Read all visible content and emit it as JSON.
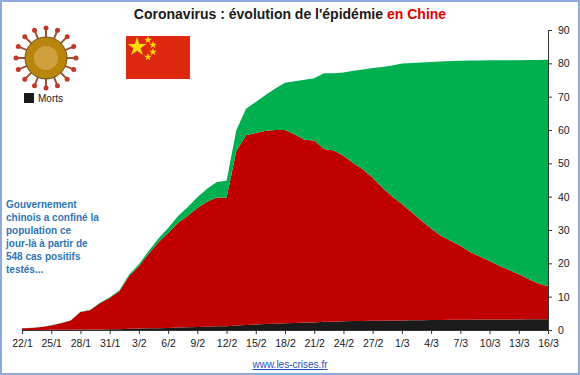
{
  "chart_data": {
    "type": "area",
    "stacked": true,
    "title": "Coronavirus : évolution de l'épidémie",
    "title_emphasis": "en Chine",
    "annotation": "Gouvernement chinois a confiné la population ce jour-là à partir de 548 cas positifs testés...",
    "source": "www.les-crises.fr",
    "legend": "top-left",
    "grid": false,
    "categories": [
      "22/1",
      null,
      null,
      "25/1",
      null,
      null,
      "28/1",
      null,
      null,
      "31/1",
      null,
      null,
      "3/2",
      null,
      null,
      "6/2",
      null,
      null,
      "9/2",
      null,
      null,
      "12/2",
      null,
      null,
      "15/2",
      null,
      null,
      "18/2",
      null,
      null,
      "21/2",
      null,
      null,
      "24/2",
      null,
      null,
      "27/2",
      null,
      null,
      "1/3",
      null,
      null,
      "4/3",
      null,
      null,
      "7/3",
      null,
      null,
      "10/3",
      null,
      null,
      "13/3",
      null,
      null,
      "16/3"
    ],
    "series": [
      {
        "name": "Morts",
        "color": "#1a1a1a",
        "values": [
          0.02,
          0.02,
          0.03,
          0.04,
          0.06,
          0.08,
          0.13,
          0.13,
          0.17,
          0.21,
          0.26,
          0.36,
          0.43,
          0.49,
          0.56,
          0.63,
          0.72,
          0.8,
          0.9,
          1.01,
          1.11,
          1.12,
          1.37,
          1.52,
          1.66,
          1.77,
          1.86,
          2.0,
          2.12,
          2.24,
          2.24,
          2.44,
          2.45,
          2.6,
          2.67,
          2.72,
          2.75,
          2.79,
          2.84,
          2.87,
          2.91,
          2.95,
          2.98,
          3.02,
          3.04,
          3.07,
          3.1,
          3.12,
          3.14,
          3.16,
          3.17,
          3.18,
          3.19,
          3.2,
          3.22
        ]
      },
      {
        "color": "#c00000",
        "values": [
          0.5,
          0.6,
          0.86,
          1.33,
          1.97,
          2.74,
          5.28,
          5.83,
          7.84,
          9.38,
          11.36,
          15.81,
          18.68,
          22.37,
          25.76,
          28.48,
          31.4,
          33.42,
          35.71,
          37.43,
          38.64,
          38.56,
          52.31,
          56.87,
          57.46,
          58.0,
          58.12,
          58.01,
          56.55,
          54.84,
          54.62,
          51.87,
          51.41,
          49.66,
          47.44,
          45.4,
          42.96,
          39.85,
          37.24,
          34.94,
          32.41,
          29.91,
          27.45,
          25.28,
          23.76,
          22.22,
          20.33,
          18.93,
          17.57,
          16.12,
          14.86,
          13.57,
          12.12,
          10.78,
          9.91
        ]
      },
      {
        "color": "#00b050",
        "values": [
          0.03,
          0.03,
          0.04,
          0.04,
          0.05,
          0.06,
          0.1,
          0.12,
          0.14,
          0.21,
          0.28,
          0.46,
          0.61,
          0.84,
          1.12,
          1.48,
          2.0,
          2.6,
          3.22,
          3.92,
          4.64,
          5.08,
          6.21,
          7.97,
          9.29,
          10.75,
          12.46,
          14.2,
          15.95,
          18.0,
          18.69,
          22.69,
          23.17,
          24.99,
          27.65,
          30.05,
          32.9,
          36.29,
          39.28,
          42.12,
          44.81,
          47.4,
          49.96,
          52.24,
          53.89,
          55.48,
          57.39,
          58.8,
          60.18,
          61.64,
          62.9,
          64.2,
          65.66,
          67.02,
          67.91
        ]
      }
    ],
    "ylim": [
      0,
      90
    ],
    "yticks": [
      0,
      10,
      20,
      30,
      40,
      50,
      60,
      70,
      80,
      90
    ]
  }
}
